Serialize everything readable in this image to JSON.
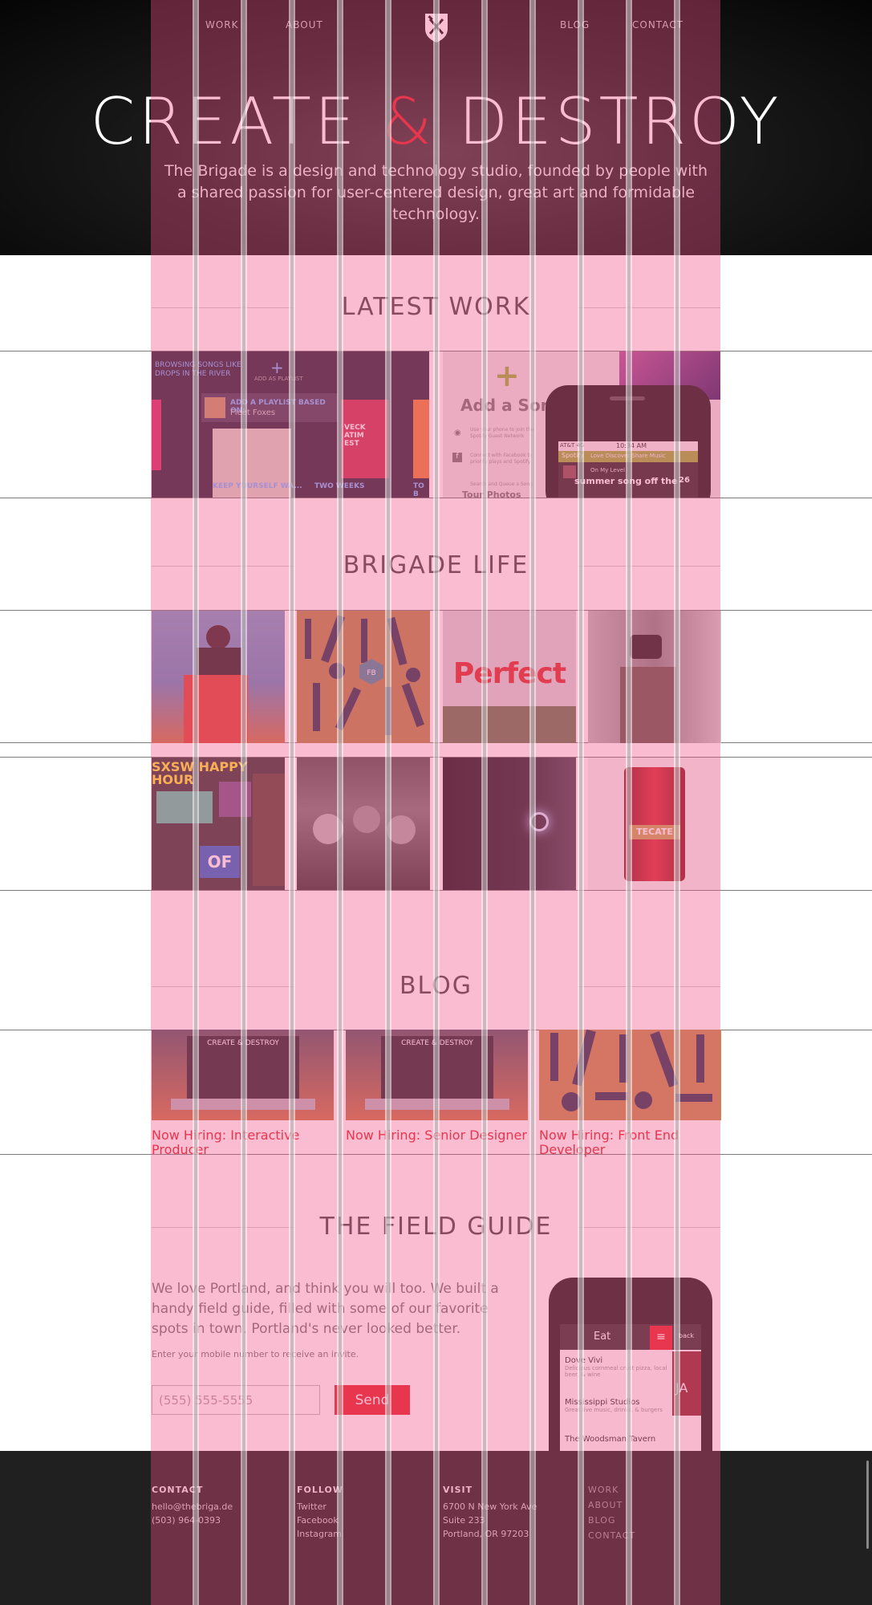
{
  "nav": {
    "links": [
      "WORK",
      "ABOUT",
      "BLOG",
      "CONTACT"
    ]
  },
  "hero": {
    "title_left": "CREATE ",
    "title_amp": "&",
    "title_right": " DESTROY",
    "subtitle": "The Brigade is a design and technology studio, founded by people with a shared passion for user-centered design, great art and formidable technology."
  },
  "latest_work": {
    "title": "LATEST WORK",
    "thumb1": {
      "browsing": "BROWSING SONGS LIKE DROPS IN THE RIVER",
      "add_playlist": "ADD AS PLAYLIST",
      "based_on": "ADD A PLAYLIST BASED ON:",
      "artist": "Fleet Foxes",
      "song1": "KEEP YOURSELF WA...",
      "song2": "TWO WEEKS",
      "song3": "TO B",
      "album_text": "VECK ATIM EST"
    },
    "thumb2": {
      "add_song": "Add a Son",
      "line1": "Use your phone to join the Spotify Guest Network",
      "line2": "Connect with Facebook to priority plays and Spotify",
      "line3": "Search and Queue a Song",
      "tour": "Tour Photos",
      "carrier": "AT&T 4G",
      "time": "10:34 AM",
      "tabs": "Love Discover Share Music",
      "spotify": "Spotify",
      "now_playing": "On My Level",
      "summer": "summer song off the",
      "num": "26"
    }
  },
  "brigade_life": {
    "title": "BRIGADE LIFE",
    "perfect": "Perfect",
    "sxsw": "SXSW HAPPY HOUR",
    "badge": "FB",
    "of": "OF",
    "tecate": "TECATE"
  },
  "blog": {
    "title": "BLOG",
    "mini_title": "CREATE & DESTROY",
    "posts": [
      "Now Hiring: Interactive Producer",
      "Now Hiring: Senior Designer",
      "Now Hiring: Front End Developer"
    ]
  },
  "field_guide": {
    "title": "THE FIELD GUIDE",
    "copy": "We love Portland, and think you will too. We built a handy field guide, filled with some of our favorite spots in town. Portland's never looked better.",
    "hint": "Enter your mobile number to receive an invite.",
    "input_placeholder": "(555) 555-5555",
    "send": "Send",
    "phone": {
      "header": "Eat",
      "back": "back",
      "side": "JA",
      "items": [
        {
          "name": "Dove Vivi",
          "desc": "Delicious cornmeal crust pizza, local beer, & wine"
        },
        {
          "name": "Mississippi Studios",
          "desc": "Great live music, drinks, & burgers"
        },
        {
          "name": "The Woodsman Tavern",
          "desc": ""
        }
      ]
    }
  },
  "footer": {
    "contact": {
      "head": "CONTACT",
      "email": "hello@thebriga.de",
      "phone": "(503) 964-0393"
    },
    "follow": {
      "head": "FOLLOW",
      "items": [
        "Twitter",
        "Facebook",
        "Instagram"
      ]
    },
    "visit": {
      "head": "VISIT",
      "lines": [
        "6700 N New York Ave",
        "Suite 233",
        "Portland, OR 97203"
      ]
    },
    "nav": [
      "WORK",
      "ABOUT",
      "BLOG",
      "CONTACT"
    ]
  },
  "colors": {
    "accent": "#e2282c",
    "overlay": "#ee5087",
    "footer_bg": "#202020"
  }
}
